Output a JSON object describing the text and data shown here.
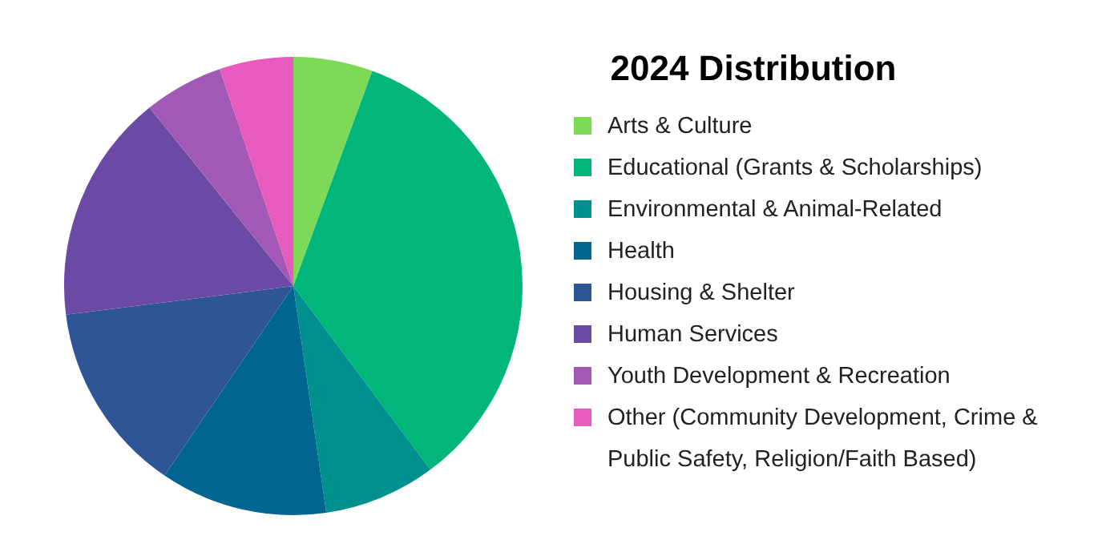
{
  "chart_data": {
    "type": "pie",
    "title": "2024 Distribution",
    "categories": [
      "Arts & Culture",
      "Educational (Grants & Scholarships)",
      "Environmental & Animal-Related",
      "Health",
      "Housing & Shelter",
      "Human Services",
      "Youth Development & Recreation",
      "Other (Community Development, Crime & Public Safety, Religion/Faith Based)"
    ],
    "values": [
      5.6,
      34.2,
      7.9,
      11.8,
      13.5,
      16.2,
      5.6,
      5.2
    ],
    "colors": [
      "#7ed957",
      "#00b67a",
      "#00918f",
      "#006590",
      "#2f5597",
      "#6a4aa5",
      "#a259b5",
      "#e75bbf"
    ],
    "legend": "right"
  }
}
